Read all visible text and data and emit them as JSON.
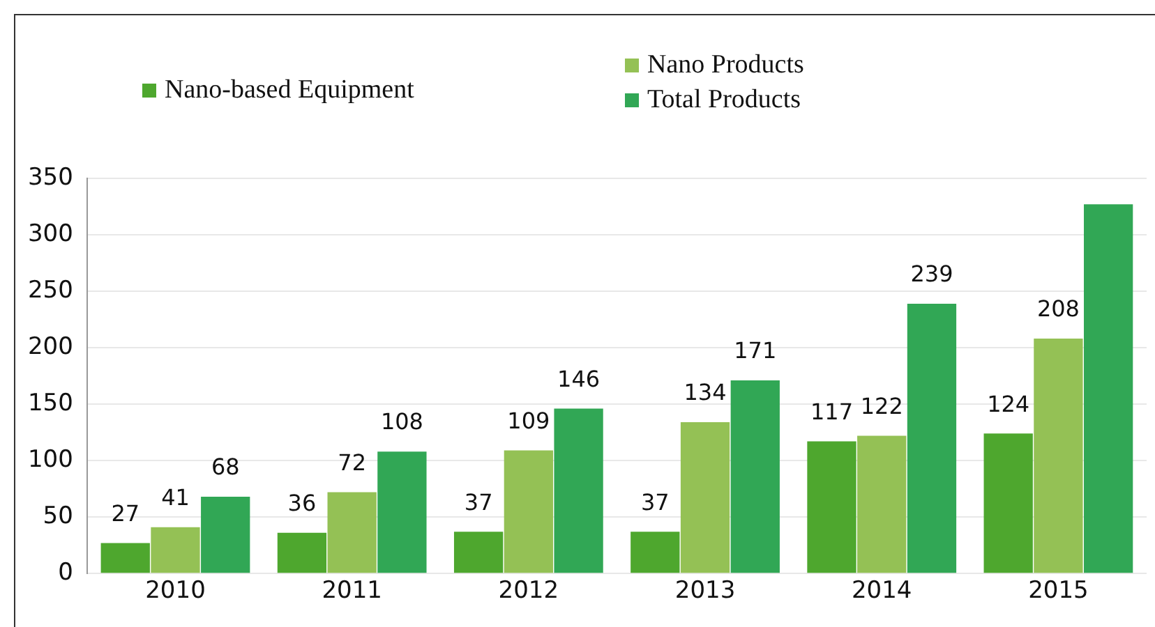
{
  "chart_data": {
    "type": "bar",
    "categories": [
      "2010",
      "2011",
      "2012",
      "2013",
      "2014",
      "2015"
    ],
    "series": [
      {
        "name": "Nano-based Equipment",
        "color": "#4ea72e",
        "values": [
          27,
          36,
          37,
          37,
          117,
          124
        ],
        "value_labels": [
          "27",
          "36",
          "37",
          "37",
          "117",
          "124"
        ]
      },
      {
        "name": "Nano Products",
        "color": "#94c155",
        "values": [
          41,
          72,
          109,
          134,
          122,
          208
        ],
        "value_labels": [
          "41",
          "72",
          "109",
          "134",
          "122",
          "208"
        ]
      },
      {
        "name": "Total Products",
        "color": "#31a755",
        "values": [
          68,
          108,
          146,
          171,
          239,
          327
        ],
        "value_labels": [
          "68",
          "108",
          "146",
          "171",
          "239",
          null
        ]
      }
    ],
    "ylim": [
      0,
      350
    ],
    "yticks": [
      0,
      50,
      100,
      150,
      200,
      250,
      300,
      350
    ],
    "grid": "y",
    "legend": "top"
  }
}
